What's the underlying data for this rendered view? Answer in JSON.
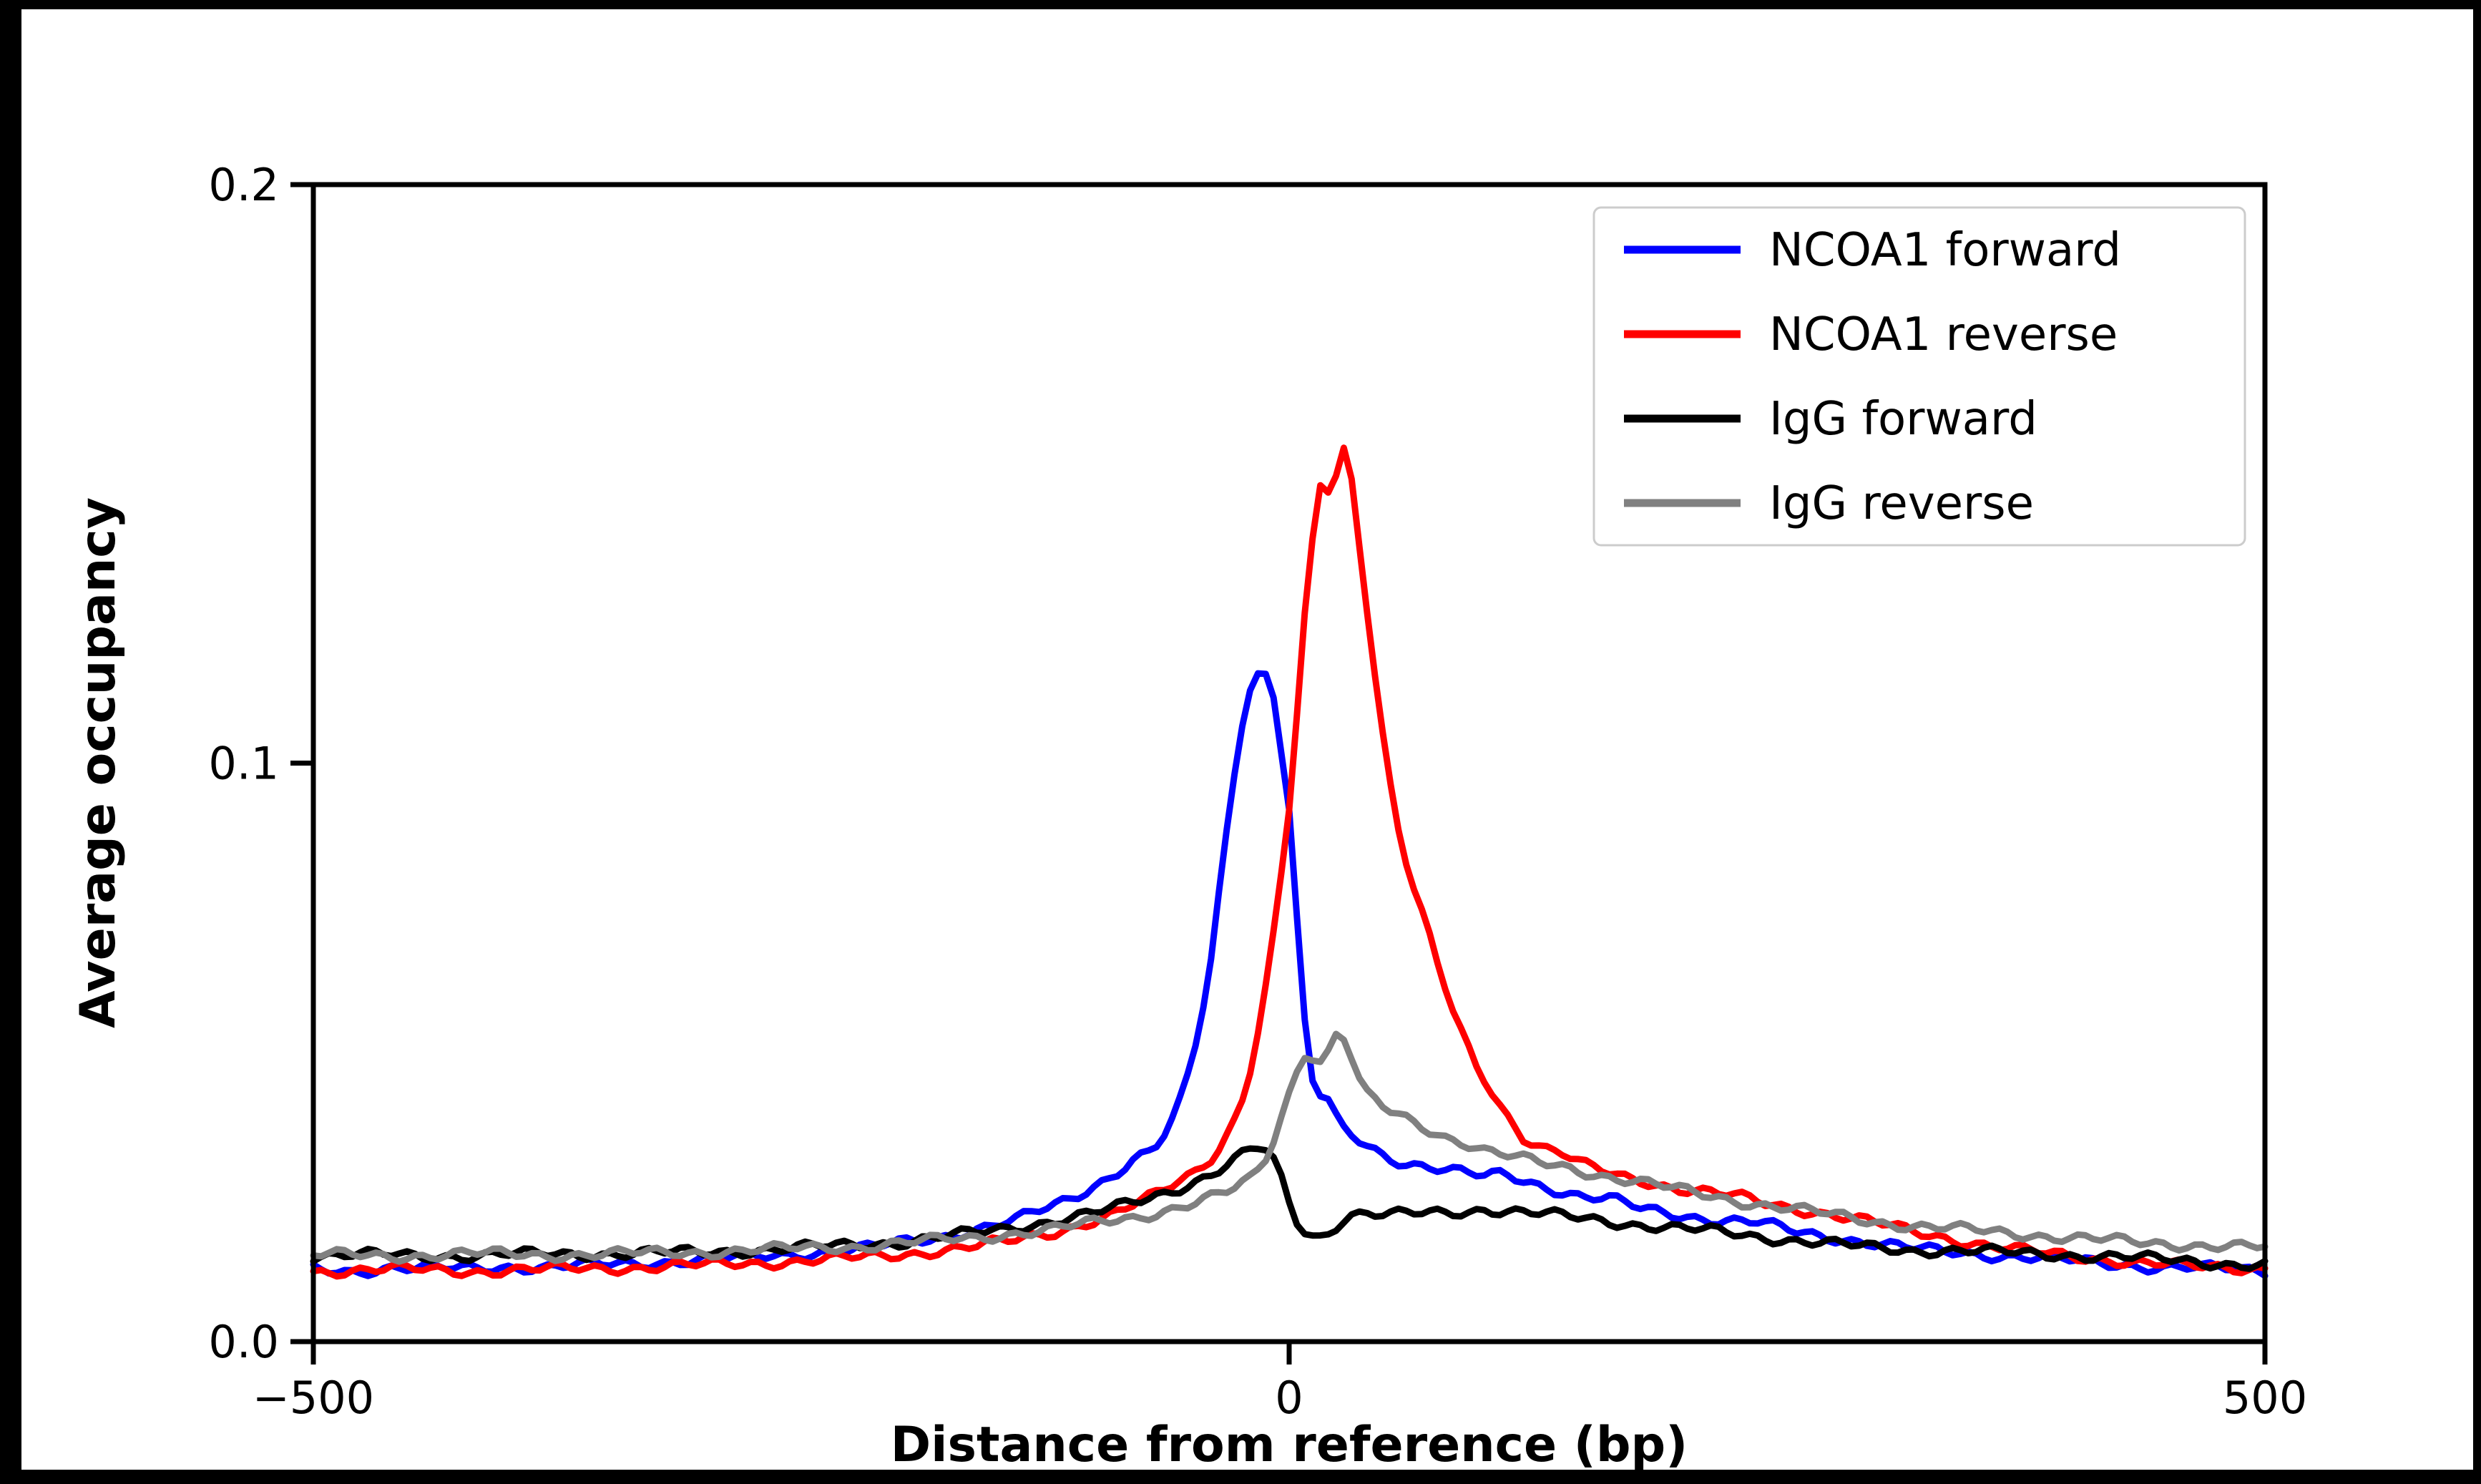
{
  "figure": {
    "background": "#ffffff",
    "frame_color": "#000000"
  },
  "chart_data": {
    "type": "line",
    "title": "",
    "xlabel": "Distance from reference (bp)",
    "ylabel": "Average occupancy",
    "xlim": [
      -500,
      500
    ],
    "ylim": [
      0,
      0.2
    ],
    "xticks": [
      -500,
      0,
      500
    ],
    "xtick_labels": [
      "−500",
      "0",
      "500"
    ],
    "yticks": [
      0,
      0.1,
      0.2
    ],
    "ytick_labels": [
      "0.0",
      "0.1",
      "0.2"
    ],
    "grid": false,
    "legend_position": "upper right",
    "noise_amplitude": 0.0011,
    "series": [
      {
        "name": "NCOA1 forward",
        "color": "#0000ff",
        "points": [
          [
            -500,
            0.0125
          ],
          [
            -480,
            0.0122
          ],
          [
            -460,
            0.0128
          ],
          [
            -440,
            0.0125
          ],
          [
            -420,
            0.0127
          ],
          [
            -400,
            0.013
          ],
          [
            -380,
            0.0128
          ],
          [
            -360,
            0.0132
          ],
          [
            -340,
            0.0135
          ],
          [
            -320,
            0.0138
          ],
          [
            -300,
            0.0142
          ],
          [
            -280,
            0.0145
          ],
          [
            -260,
            0.015
          ],
          [
            -240,
            0.0155
          ],
          [
            -220,
            0.016
          ],
          [
            -200,
            0.017
          ],
          [
            -180,
            0.018
          ],
          [
            -160,
            0.0195
          ],
          [
            -140,
            0.021
          ],
          [
            -120,
            0.0235
          ],
          [
            -110,
            0.025
          ],
          [
            -100,
            0.027
          ],
          [
            -90,
            0.029
          ],
          [
            -80,
            0.0315
          ],
          [
            -70,
            0.033
          ],
          [
            -65,
            0.035
          ],
          [
            -60,
            0.038
          ],
          [
            -55,
            0.042
          ],
          [
            -50,
            0.048
          ],
          [
            -45,
            0.056
          ],
          [
            -40,
            0.066
          ],
          [
            -35,
            0.08
          ],
          [
            -30,
            0.094
          ],
          [
            -25,
            0.106
          ],
          [
            -20,
            0.113
          ],
          [
            -15,
            0.116
          ],
          [
            -12,
            0.1155
          ],
          [
            -8,
            0.112
          ],
          [
            -5,
            0.105
          ],
          [
            0,
            0.092
          ],
          [
            3,
            0.078
          ],
          [
            6,
            0.062
          ],
          [
            10,
            0.048
          ],
          [
            14,
            0.042
          ],
          [
            18,
            0.043
          ],
          [
            22,
            0.04
          ],
          [
            26,
            0.037
          ],
          [
            30,
            0.036
          ],
          [
            40,
            0.034
          ],
          [
            50,
            0.032
          ],
          [
            60,
            0.031
          ],
          [
            75,
            0.03
          ],
          [
            90,
            0.029
          ],
          [
            100,
            0.0285
          ],
          [
            110,
            0.029
          ],
          [
            120,
            0.028
          ],
          [
            130,
            0.027
          ],
          [
            140,
            0.026
          ],
          [
            150,
            0.025
          ],
          [
            165,
            0.0245
          ],
          [
            180,
            0.023
          ],
          [
            200,
            0.022
          ],
          [
            220,
            0.021
          ],
          [
            240,
            0.0205
          ],
          [
            260,
            0.019
          ],
          [
            280,
            0.018
          ],
          [
            300,
            0.017
          ],
          [
            320,
            0.016
          ],
          [
            340,
            0.0155
          ],
          [
            360,
            0.015
          ],
          [
            380,
            0.0145
          ],
          [
            400,
            0.014
          ],
          [
            420,
            0.0135
          ],
          [
            440,
            0.013
          ],
          [
            460,
            0.0128
          ],
          [
            480,
            0.0125
          ],
          [
            500,
            0.0122
          ]
        ]
      },
      {
        "name": "NCOA1 reverse",
        "color": "#ff0000",
        "points": [
          [
            -500,
            0.0122
          ],
          [
            -460,
            0.0125
          ],
          [
            -420,
            0.0122
          ],
          [
            -380,
            0.0125
          ],
          [
            -340,
            0.0128
          ],
          [
            -300,
            0.0132
          ],
          [
            -260,
            0.0138
          ],
          [
            -220,
            0.0145
          ],
          [
            -200,
            0.015
          ],
          [
            -180,
            0.0158
          ],
          [
            -160,
            0.0165
          ],
          [
            -140,
            0.0175
          ],
          [
            -120,
            0.019
          ],
          [
            -100,
            0.021
          ],
          [
            -90,
            0.022
          ],
          [
            -80,
            0.0235
          ],
          [
            -70,
            0.025
          ],
          [
            -60,
            0.027
          ],
          [
            -50,
            0.029
          ],
          [
            -45,
            0.0305
          ],
          [
            -40,
            0.032
          ],
          [
            -35,
            0.034
          ],
          [
            -30,
            0.037
          ],
          [
            -25,
            0.041
          ],
          [
            -20,
            0.047
          ],
          [
            -15,
            0.055
          ],
          [
            -10,
            0.065
          ],
          [
            -5,
            0.078
          ],
          [
            0,
            0.092
          ],
          [
            4,
            0.108
          ],
          [
            8,
            0.125
          ],
          [
            12,
            0.138
          ],
          [
            15,
            0.147
          ],
          [
            18,
            0.15
          ],
          [
            21,
            0.146
          ],
          [
            24,
            0.15
          ],
          [
            27,
            0.155
          ],
          [
            30,
            0.153
          ],
          [
            33,
            0.147
          ],
          [
            36,
            0.138
          ],
          [
            40,
            0.127
          ],
          [
            45,
            0.113
          ],
          [
            50,
            0.1
          ],
          [
            55,
            0.09
          ],
          [
            60,
            0.083
          ],
          [
            65,
            0.077
          ],
          [
            70,
            0.072
          ],
          [
            75,
            0.066
          ],
          [
            80,
            0.061
          ],
          [
            85,
            0.056
          ],
          [
            90,
            0.052
          ],
          [
            95,
            0.048
          ],
          [
            100,
            0.0455
          ],
          [
            110,
            0.04
          ],
          [
            120,
            0.0355
          ],
          [
            130,
            0.0335
          ],
          [
            140,
            0.0325
          ],
          [
            150,
            0.0305
          ],
          [
            160,
            0.0295
          ],
          [
            170,
            0.0285
          ],
          [
            180,
            0.028
          ],
          [
            190,
            0.0272
          ],
          [
            200,
            0.0265
          ],
          [
            215,
            0.0258
          ],
          [
            230,
            0.025
          ],
          [
            245,
            0.0238
          ],
          [
            260,
            0.023
          ],
          [
            275,
            0.0222
          ],
          [
            290,
            0.0212
          ],
          [
            300,
            0.0205
          ],
          [
            320,
            0.019
          ],
          [
            340,
            0.0178
          ],
          [
            360,
            0.0165
          ],
          [
            380,
            0.0155
          ],
          [
            400,
            0.0148
          ],
          [
            420,
            0.0142
          ],
          [
            440,
            0.0135
          ],
          [
            460,
            0.013
          ],
          [
            480,
            0.0128
          ],
          [
            500,
            0.0128
          ]
        ]
      },
      {
        "name": "IgG forward",
        "color": "#000000",
        "points": [
          [
            -500,
            0.0148
          ],
          [
            -460,
            0.015
          ],
          [
            -420,
            0.0148
          ],
          [
            -380,
            0.0152
          ],
          [
            -340,
            0.0152
          ],
          [
            -300,
            0.0155
          ],
          [
            -260,
            0.016
          ],
          [
            -220,
            0.0168
          ],
          [
            -200,
            0.0172
          ],
          [
            -180,
            0.018
          ],
          [
            -160,
            0.0188
          ],
          [
            -140,
            0.0198
          ],
          [
            -120,
            0.021
          ],
          [
            -100,
            0.0222
          ],
          [
            -90,
            0.023
          ],
          [
            -80,
            0.024
          ],
          [
            -70,
            0.025
          ],
          [
            -60,
            0.0262
          ],
          [
            -50,
            0.0275
          ],
          [
            -40,
            0.029
          ],
          [
            -32,
            0.0305
          ],
          [
            -25,
            0.032
          ],
          [
            -20,
            0.033
          ],
          [
            -15,
            0.0335
          ],
          [
            -10,
            0.0325
          ],
          [
            -5,
            0.029
          ],
          [
            0,
            0.024
          ],
          [
            5,
            0.02
          ],
          [
            10,
            0.0185
          ],
          [
            15,
            0.018
          ],
          [
            20,
            0.019
          ],
          [
            25,
            0.0205
          ],
          [
            30,
            0.022
          ],
          [
            40,
            0.0222
          ],
          [
            50,
            0.0218
          ],
          [
            60,
            0.022
          ],
          [
            75,
            0.0222
          ],
          [
            90,
            0.0225
          ],
          [
            100,
            0.023
          ],
          [
            115,
            0.0225
          ],
          [
            130,
            0.022
          ],
          [
            145,
            0.0215
          ],
          [
            160,
            0.021
          ],
          [
            180,
            0.0202
          ],
          [
            200,
            0.0195
          ],
          [
            220,
            0.019
          ],
          [
            240,
            0.0182
          ],
          [
            260,
            0.0175
          ],
          [
            280,
            0.0168
          ],
          [
            300,
            0.0162
          ],
          [
            320,
            0.0158
          ],
          [
            340,
            0.0158
          ],
          [
            360,
            0.0155
          ],
          [
            380,
            0.0152
          ],
          [
            400,
            0.015
          ],
          [
            420,
            0.0147
          ],
          [
            440,
            0.0143
          ],
          [
            460,
            0.014
          ],
          [
            480,
            0.0135
          ],
          [
            500,
            0.0132
          ]
        ]
      },
      {
        "name": "IgG reverse",
        "color": "#808080",
        "points": [
          [
            -500,
            0.015
          ],
          [
            -460,
            0.0148
          ],
          [
            -420,
            0.0152
          ],
          [
            -380,
            0.015
          ],
          [
            -340,
            0.0152
          ],
          [
            -300,
            0.0155
          ],
          [
            -260,
            0.016
          ],
          [
            -220,
            0.0165
          ],
          [
            -200,
            0.017
          ],
          [
            -180,
            0.0175
          ],
          [
            -160,
            0.018
          ],
          [
            -140,
            0.0188
          ],
          [
            -120,
            0.0195
          ],
          [
            -100,
            0.0205
          ],
          [
            -90,
            0.021
          ],
          [
            -80,
            0.0215
          ],
          [
            -70,
            0.0222
          ],
          [
            -60,
            0.023
          ],
          [
            -50,
            0.0238
          ],
          [
            -40,
            0.0248
          ],
          [
            -30,
            0.026
          ],
          [
            -25,
            0.027
          ],
          [
            -20,
            0.028
          ],
          [
            -15,
            0.03
          ],
          [
            -10,
            0.033
          ],
          [
            -5,
            0.038
          ],
          [
            0,
            0.043
          ],
          [
            4,
            0.047
          ],
          [
            8,
            0.05
          ],
          [
            12,
            0.0495
          ],
          [
            16,
            0.0485
          ],
          [
            20,
            0.05
          ],
          [
            24,
            0.053
          ],
          [
            28,
            0.0525
          ],
          [
            32,
            0.049
          ],
          [
            36,
            0.045
          ],
          [
            40,
            0.0425
          ],
          [
            50,
            0.04
          ],
          [
            60,
            0.0385
          ],
          [
            70,
            0.037
          ],
          [
            80,
            0.0355
          ],
          [
            90,
            0.0345
          ],
          [
            100,
            0.033
          ],
          [
            115,
            0.0318
          ],
          [
            130,
            0.0308
          ],
          [
            145,
            0.03
          ],
          [
            160,
            0.0288
          ],
          [
            180,
            0.0275
          ],
          [
            200,
            0.0262
          ],
          [
            220,
            0.025
          ],
          [
            240,
            0.0238
          ],
          [
            260,
            0.0228
          ],
          [
            280,
            0.0218
          ],
          [
            300,
            0.0208
          ],
          [
            320,
            0.02
          ],
          [
            340,
            0.0195
          ],
          [
            360,
            0.019
          ],
          [
            380,
            0.0185
          ],
          [
            400,
            0.018
          ],
          [
            420,
            0.0175
          ],
          [
            440,
            0.017
          ],
          [
            460,
            0.0168
          ],
          [
            480,
            0.0165
          ],
          [
            500,
            0.0162
          ]
        ]
      }
    ]
  }
}
